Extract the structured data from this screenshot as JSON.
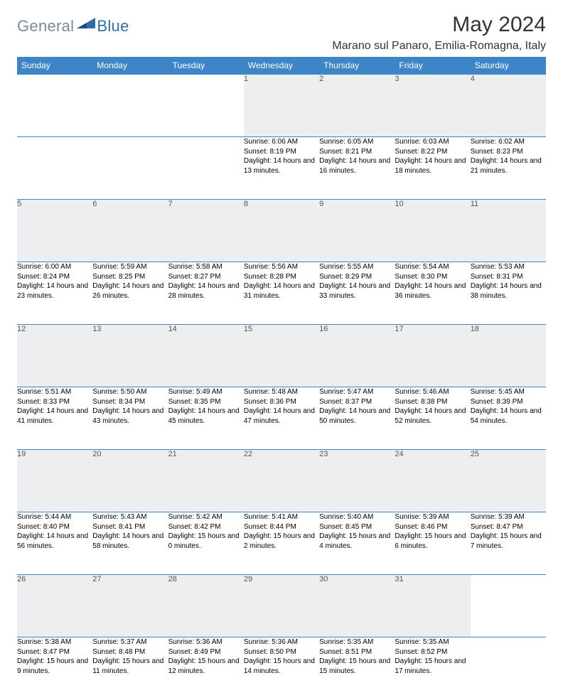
{
  "logo": {
    "general": "General",
    "blue": "Blue"
  },
  "title": "May 2024",
  "location": "Marano sul Panaro, Emilia-Romagna, Italy",
  "header_color": "#3d85c6",
  "daynum_bg": "#eceef0",
  "weekdays": [
    "Sunday",
    "Monday",
    "Tuesday",
    "Wednesday",
    "Thursday",
    "Friday",
    "Saturday"
  ],
  "weeks": [
    [
      null,
      null,
      null,
      {
        "n": "1",
        "sr": "6:06 AM",
        "ss": "8:19 PM",
        "dl": "14 hours and 13 minutes."
      },
      {
        "n": "2",
        "sr": "6:05 AM",
        "ss": "8:21 PM",
        "dl": "14 hours and 16 minutes."
      },
      {
        "n": "3",
        "sr": "6:03 AM",
        "ss": "8:22 PM",
        "dl": "14 hours and 18 minutes."
      },
      {
        "n": "4",
        "sr": "6:02 AM",
        "ss": "8:23 PM",
        "dl": "14 hours and 21 minutes."
      }
    ],
    [
      {
        "n": "5",
        "sr": "6:00 AM",
        "ss": "8:24 PM",
        "dl": "14 hours and 23 minutes."
      },
      {
        "n": "6",
        "sr": "5:59 AM",
        "ss": "8:25 PM",
        "dl": "14 hours and 26 minutes."
      },
      {
        "n": "7",
        "sr": "5:58 AM",
        "ss": "8:27 PM",
        "dl": "14 hours and 28 minutes."
      },
      {
        "n": "8",
        "sr": "5:56 AM",
        "ss": "8:28 PM",
        "dl": "14 hours and 31 minutes."
      },
      {
        "n": "9",
        "sr": "5:55 AM",
        "ss": "8:29 PM",
        "dl": "14 hours and 33 minutes."
      },
      {
        "n": "10",
        "sr": "5:54 AM",
        "ss": "8:30 PM",
        "dl": "14 hours and 36 minutes."
      },
      {
        "n": "11",
        "sr": "5:53 AM",
        "ss": "8:31 PM",
        "dl": "14 hours and 38 minutes."
      }
    ],
    [
      {
        "n": "12",
        "sr": "5:51 AM",
        "ss": "8:33 PM",
        "dl": "14 hours and 41 minutes."
      },
      {
        "n": "13",
        "sr": "5:50 AM",
        "ss": "8:34 PM",
        "dl": "14 hours and 43 minutes."
      },
      {
        "n": "14",
        "sr": "5:49 AM",
        "ss": "8:35 PM",
        "dl": "14 hours and 45 minutes."
      },
      {
        "n": "15",
        "sr": "5:48 AM",
        "ss": "8:36 PM",
        "dl": "14 hours and 47 minutes."
      },
      {
        "n": "16",
        "sr": "5:47 AM",
        "ss": "8:37 PM",
        "dl": "14 hours and 50 minutes."
      },
      {
        "n": "17",
        "sr": "5:46 AM",
        "ss": "8:38 PM",
        "dl": "14 hours and 52 minutes."
      },
      {
        "n": "18",
        "sr": "5:45 AM",
        "ss": "8:39 PM",
        "dl": "14 hours and 54 minutes."
      }
    ],
    [
      {
        "n": "19",
        "sr": "5:44 AM",
        "ss": "8:40 PM",
        "dl": "14 hours and 56 minutes."
      },
      {
        "n": "20",
        "sr": "5:43 AM",
        "ss": "8:41 PM",
        "dl": "14 hours and 58 minutes."
      },
      {
        "n": "21",
        "sr": "5:42 AM",
        "ss": "8:42 PM",
        "dl": "15 hours and 0 minutes."
      },
      {
        "n": "22",
        "sr": "5:41 AM",
        "ss": "8:44 PM",
        "dl": "15 hours and 2 minutes."
      },
      {
        "n": "23",
        "sr": "5:40 AM",
        "ss": "8:45 PM",
        "dl": "15 hours and 4 minutes."
      },
      {
        "n": "24",
        "sr": "5:39 AM",
        "ss": "8:46 PM",
        "dl": "15 hours and 6 minutes."
      },
      {
        "n": "25",
        "sr": "5:39 AM",
        "ss": "8:47 PM",
        "dl": "15 hours and 7 minutes."
      }
    ],
    [
      {
        "n": "26",
        "sr": "5:38 AM",
        "ss": "8:47 PM",
        "dl": "15 hours and 9 minutes."
      },
      {
        "n": "27",
        "sr": "5:37 AM",
        "ss": "8:48 PM",
        "dl": "15 hours and 11 minutes."
      },
      {
        "n": "28",
        "sr": "5:36 AM",
        "ss": "8:49 PM",
        "dl": "15 hours and 12 minutes."
      },
      {
        "n": "29",
        "sr": "5:36 AM",
        "ss": "8:50 PM",
        "dl": "15 hours and 14 minutes."
      },
      {
        "n": "30",
        "sr": "5:35 AM",
        "ss": "8:51 PM",
        "dl": "15 hours and 15 minutes."
      },
      {
        "n": "31",
        "sr": "5:35 AM",
        "ss": "8:52 PM",
        "dl": "15 hours and 17 minutes."
      },
      null
    ]
  ],
  "labels": {
    "sunrise": "Sunrise: ",
    "sunset": "Sunset: ",
    "daylight": "Daylight: "
  }
}
